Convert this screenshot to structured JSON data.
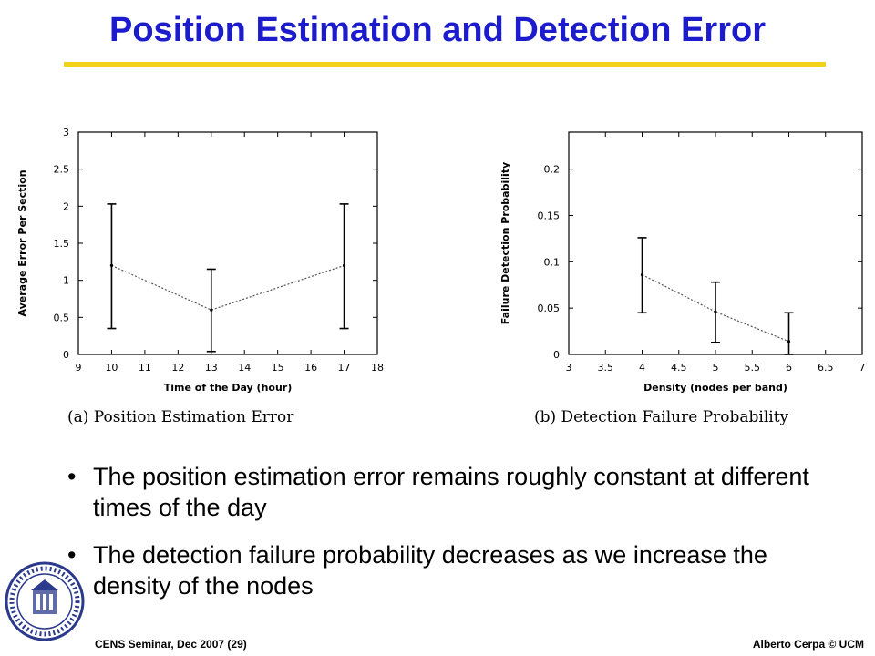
{
  "slide": {
    "title": "Position Estimation and Detection Error",
    "bullets": [
      "The position estimation error remains roughly constant at different times of the day",
      "The detection failure probability decreases as we increase the density of the nodes"
    ],
    "footer_left": "CENS Seminar, Dec 2007 (29)",
    "footer_right": "Alberto Cerpa © UCM",
    "seal_text": "THE UNIVERSITY OF CALIFORNIA MERCED",
    "colors": {
      "title": "#1c1ccc",
      "rule": "#f2d21a"
    }
  },
  "chart_data": [
    {
      "type": "line",
      "caption": "(a) Position Estimation Error",
      "xlabel": "Time of the Day (hour)",
      "ylabel": "Average Error Per Section",
      "xlim": [
        9,
        18
      ],
      "ylim": [
        0,
        3
      ],
      "xticks": [
        9,
        10,
        11,
        12,
        13,
        14,
        15,
        16,
        17,
        18
      ],
      "yticks": [
        0,
        0.5,
        1,
        1.5,
        2,
        2.5,
        3
      ],
      "grid": false,
      "series": [
        {
          "x": [
            10,
            13,
            17
          ],
          "y": [
            1.2,
            0.6,
            1.2
          ],
          "err_low": [
            0.35,
            0.04,
            0.35
          ],
          "err_high": [
            2.03,
            1.15,
            2.03
          ]
        }
      ]
    },
    {
      "type": "line",
      "caption": "(b) Detection Failure Probability",
      "xlabel": "Density (nodes per band)",
      "ylabel": "Failure Detection Probability",
      "xlim": [
        3,
        7
      ],
      "ylim": [
        0,
        0.24
      ],
      "xticks": [
        3,
        3.5,
        4,
        4.5,
        5,
        5.5,
        6,
        6.5,
        7
      ],
      "yticks": [
        0,
        0.05,
        0.1,
        0.15,
        0.2
      ],
      "grid": false,
      "series": [
        {
          "x": [
            4,
            5,
            6
          ],
          "y": [
            0.086,
            0.046,
            0.014
          ],
          "err_low": [
            0.045,
            0.013,
            0.0
          ],
          "err_high": [
            0.126,
            0.078,
            0.045
          ]
        }
      ]
    }
  ]
}
